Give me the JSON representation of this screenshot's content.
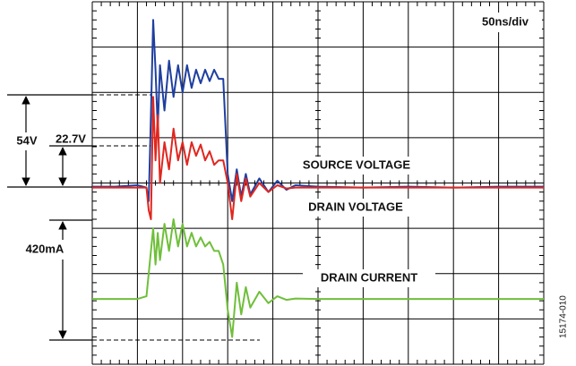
{
  "chart_data": {
    "type": "line",
    "labels": {
      "timebase": "50ns/div",
      "source": "SOURCE VOLTAGE",
      "drain": "DRAIN VOLTAGE",
      "current": "DRAIN CURRENT",
      "v54": "54V",
      "v22": "22.7V",
      "i420": "420mA",
      "figure_id": "15174-010"
    },
    "x": [
      0,
      0.5,
      1.0,
      1.2,
      1.25,
      1.3,
      1.35,
      1.4,
      1.45,
      1.5,
      1.6,
      1.7,
      1.8,
      1.9,
      2.0,
      2.1,
      2.2,
      2.3,
      2.4,
      2.5,
      2.6,
      2.7,
      2.8,
      2.9,
      3.0,
      3.1,
      3.2,
      3.3,
      3.4,
      3.5,
      3.7,
      3.9,
      4.1,
      4.3,
      4.5,
      5,
      6,
      7,
      8,
      9,
      10
    ],
    "series": [
      {
        "name": "SOURCE VOLTAGE",
        "color": "#1f3f9f",
        "values": [
          3.92,
          3.92,
          3.95,
          3.9,
          3.6,
          5.5,
          7.6,
          6.5,
          5.2,
          6.6,
          5.6,
          6.7,
          5.9,
          6.6,
          6.0,
          6.6,
          6.1,
          6.5,
          6.2,
          6.5,
          6.25,
          6.5,
          6.3,
          6.3,
          4.2,
          3.6,
          4.3,
          3.7,
          4.2,
          3.75,
          4.1,
          3.8,
          4.05,
          3.85,
          3.95,
          3.92,
          3.9,
          3.92,
          3.9,
          3.92,
          3.92
        ]
      },
      {
        "name": "DRAIN VOLTAGE",
        "color": "#e0261f",
        "values": [
          3.9,
          3.9,
          3.9,
          3.9,
          3.4,
          3.2,
          5.9,
          4.5,
          5.5,
          4.0,
          4.9,
          4.3,
          5.2,
          4.5,
          4.9,
          4.4,
          4.9,
          4.6,
          4.85,
          4.5,
          4.7,
          4.4,
          4.5,
          4.5,
          4.0,
          3.2,
          4.2,
          3.6,
          4.1,
          3.7,
          4.0,
          3.8,
          3.95,
          3.88,
          3.9,
          3.9,
          3.9,
          3.9,
          3.9,
          3.9,
          3.9
        ]
      },
      {
        "name": "DRAIN CURRENT",
        "color": "#6fbf3a",
        "values": [
          1.44,
          1.44,
          1.44,
          1.5,
          2.0,
          2.5,
          3.0,
          2.2,
          2.9,
          2.3,
          3.1,
          2.5,
          3.2,
          2.6,
          3.1,
          2.6,
          2.9,
          2.6,
          2.8,
          2.6,
          2.7,
          2.5,
          2.5,
          2.2,
          1.2,
          0.6,
          1.8,
          1.1,
          1.7,
          1.25,
          1.6,
          1.35,
          1.5,
          1.42,
          1.45,
          1.44,
          1.44,
          1.44,
          1.44,
          1.44,
          1.44
        ]
      }
    ],
    "xlim": [
      0,
      10
    ],
    "ylim": [
      0,
      8
    ],
    "xticks": [
      0,
      1,
      2,
      3,
      4,
      5,
      6,
      7,
      8,
      9,
      10
    ],
    "yticks": [
      0,
      1,
      2,
      3,
      4,
      5,
      6,
      7,
      8
    ],
    "grid": true
  }
}
